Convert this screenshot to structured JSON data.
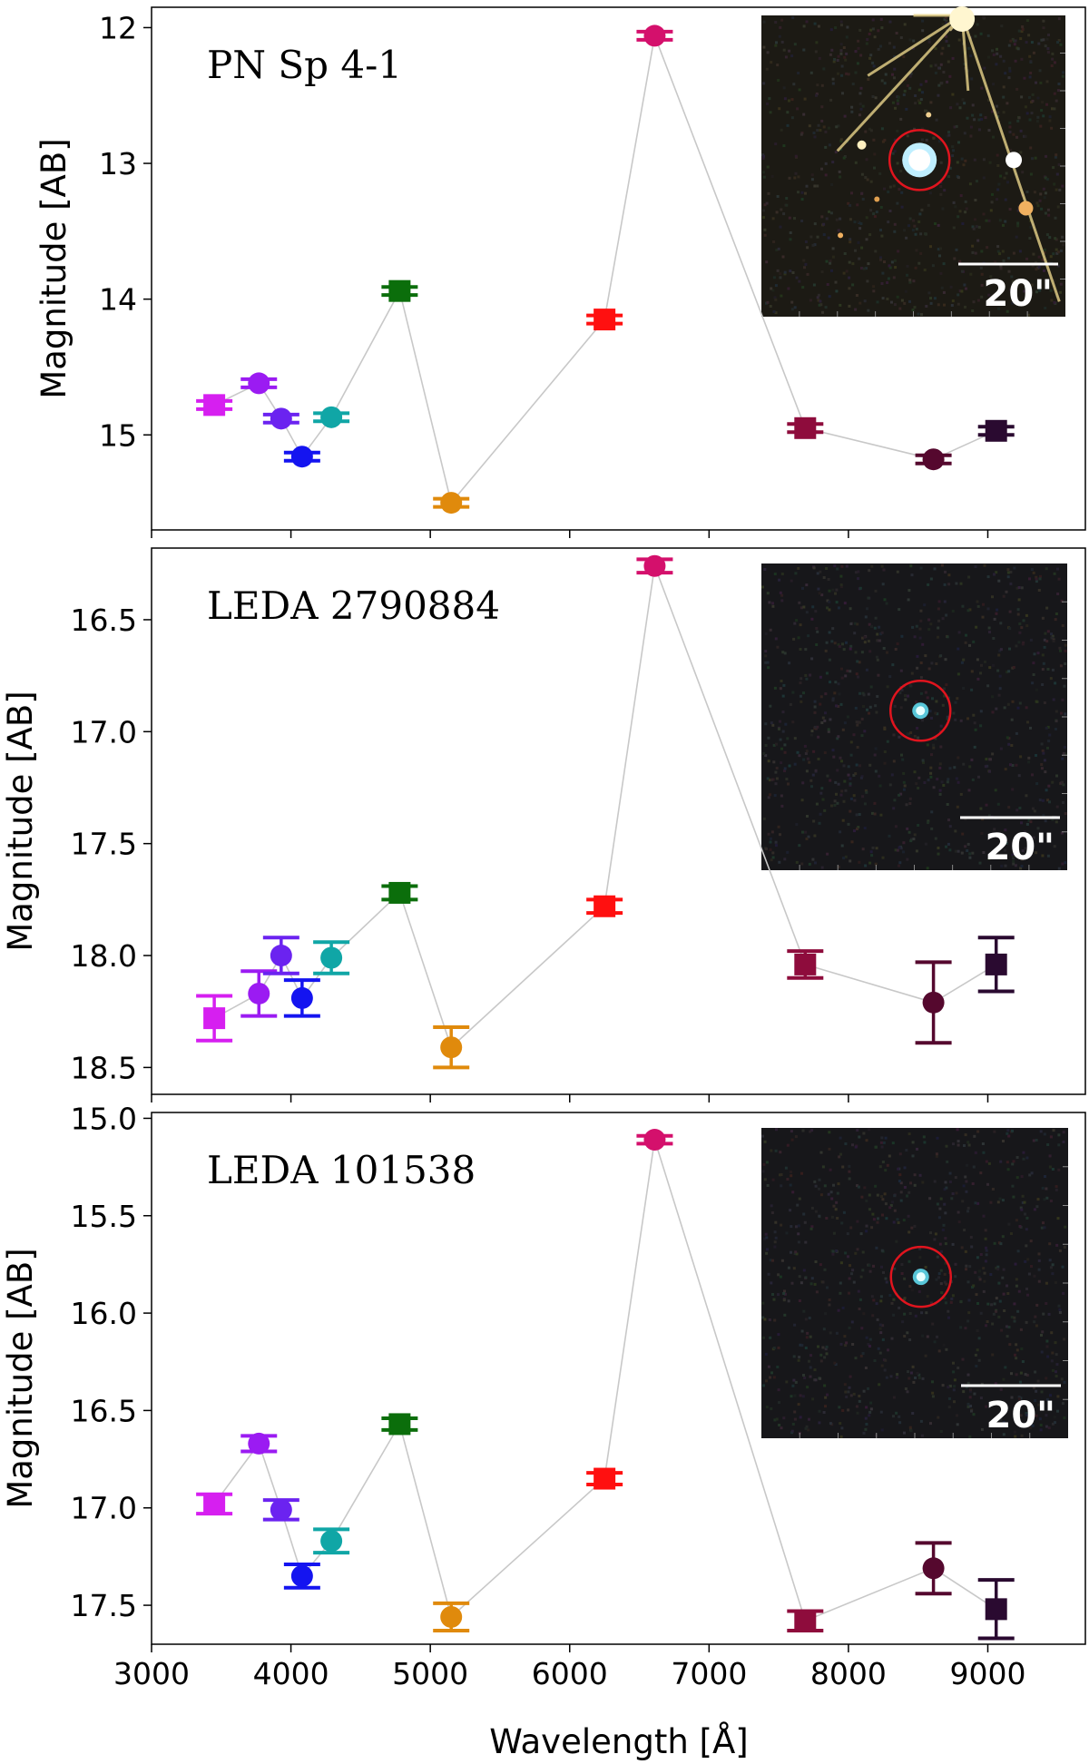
{
  "figure": {
    "xlabel": "Wavelength [Å]",
    "xticks": [
      3000,
      4000,
      5000,
      6000,
      7000,
      8000,
      9000
    ],
    "connector_color": "#c8c8c8"
  },
  "chart_data": [
    {
      "type": "scatter",
      "title": "PN Sp 4-1",
      "xlabel": "Wavelength [Å]",
      "ylabel": "Magnitude [AB]",
      "xlim": [
        3000,
        9700
      ],
      "ylim": [
        15.7,
        11.85
      ],
      "y_inverted": true,
      "yticks": [
        12,
        13,
        14,
        15
      ],
      "ytick_labels": [
        "12",
        "13",
        "14",
        "15"
      ],
      "inset": {
        "scale_label": "20\"",
        "variant": "bright"
      },
      "points": [
        {
          "x": 3450,
          "y": 14.78,
          "err": 0.03,
          "marker": "square",
          "color": "#d61ff0"
        },
        {
          "x": 3770,
          "y": 14.62,
          "err": 0.03,
          "marker": "circle",
          "color": "#9b1bf2"
        },
        {
          "x": 3930,
          "y": 14.88,
          "err": 0.03,
          "marker": "circle",
          "color": "#6b23f0"
        },
        {
          "x": 4080,
          "y": 15.16,
          "err": 0.03,
          "marker": "circle",
          "color": "#1414f0"
        },
        {
          "x": 4290,
          "y": 14.87,
          "err": 0.03,
          "marker": "circle",
          "color": "#10a6a6"
        },
        {
          "x": 4780,
          "y": 13.94,
          "err": 0.03,
          "marker": "square",
          "color": "#0b6e0b"
        },
        {
          "x": 5150,
          "y": 15.5,
          "err": 0.03,
          "marker": "circle",
          "color": "#e08a0c"
        },
        {
          "x": 6250,
          "y": 14.15,
          "err": 0.03,
          "marker": "square",
          "color": "#ff1010"
        },
        {
          "x": 6610,
          "y": 12.06,
          "err": 0.03,
          "marker": "circle",
          "color": "#d4106c"
        },
        {
          "x": 7690,
          "y": 14.95,
          "err": 0.03,
          "marker": "square",
          "color": "#8e0c3c"
        },
        {
          "x": 8610,
          "y": 15.18,
          "err": 0.03,
          "marker": "circle",
          "color": "#55082e"
        },
        {
          "x": 9060,
          "y": 14.97,
          "err": 0.03,
          "marker": "square",
          "color": "#2a0a30"
        }
      ]
    },
    {
      "type": "scatter",
      "title": "LEDA 2790884",
      "xlabel": "Wavelength [Å]",
      "ylabel": "Magnitude [AB]",
      "xlim": [
        3000,
        9700
      ],
      "ylim": [
        18.62,
        16.18
      ],
      "y_inverted": true,
      "yticks": [
        16.5,
        17.0,
        17.5,
        18.0,
        18.5
      ],
      "ytick_labels": [
        "16.5",
        "17.0",
        "17.5",
        "18.0",
        "18.5"
      ],
      "inset": {
        "scale_label": "20\"",
        "variant": "faint"
      },
      "points": [
        {
          "x": 3450,
          "y": 18.28,
          "err": 0.1,
          "marker": "square",
          "color": "#d61ff0"
        },
        {
          "x": 3770,
          "y": 18.17,
          "err": 0.1,
          "marker": "circle",
          "color": "#9b1bf2"
        },
        {
          "x": 3930,
          "y": 18.0,
          "err": 0.08,
          "marker": "circle",
          "color": "#6b23f0"
        },
        {
          "x": 4080,
          "y": 18.19,
          "err": 0.08,
          "marker": "circle",
          "color": "#1414f0"
        },
        {
          "x": 4290,
          "y": 18.01,
          "err": 0.07,
          "marker": "circle",
          "color": "#10a6a6"
        },
        {
          "x": 4780,
          "y": 17.72,
          "err": 0.03,
          "marker": "square",
          "color": "#0b6e0b"
        },
        {
          "x": 5150,
          "y": 18.41,
          "err": 0.09,
          "marker": "circle",
          "color": "#e08a0c"
        },
        {
          "x": 6250,
          "y": 17.78,
          "err": 0.03,
          "marker": "square",
          "color": "#ff1010"
        },
        {
          "x": 6610,
          "y": 16.26,
          "err": 0.03,
          "marker": "circle",
          "color": "#d4106c"
        },
        {
          "x": 7690,
          "y": 18.04,
          "err": 0.06,
          "marker": "square",
          "color": "#8e0c3c"
        },
        {
          "x": 8610,
          "y": 18.21,
          "err": 0.18,
          "marker": "circle",
          "color": "#55082e"
        },
        {
          "x": 9060,
          "y": 18.04,
          "err": 0.12,
          "marker": "square",
          "color": "#2a0a30"
        }
      ]
    },
    {
      "type": "scatter",
      "title": "LEDA 101538",
      "xlabel": "Wavelength [Å]",
      "ylabel": "Magnitude [AB]",
      "xlim": [
        3000,
        9700
      ],
      "ylim": [
        17.7,
        14.97
      ],
      "y_inverted": true,
      "yticks": [
        15.0,
        15.5,
        16.0,
        16.5,
        17.0,
        17.5
      ],
      "ytick_labels": [
        "15.0",
        "15.5",
        "16.0",
        "16.5",
        "17.0",
        "17.5"
      ],
      "inset": {
        "scale_label": "20\"",
        "variant": "faint"
      },
      "points": [
        {
          "x": 3450,
          "y": 16.98,
          "err": 0.05,
          "marker": "square",
          "color": "#d61ff0"
        },
        {
          "x": 3770,
          "y": 16.67,
          "err": 0.04,
          "marker": "circle",
          "color": "#9b1bf2"
        },
        {
          "x": 3930,
          "y": 17.01,
          "err": 0.05,
          "marker": "circle",
          "color": "#6b23f0"
        },
        {
          "x": 4080,
          "y": 17.35,
          "err": 0.06,
          "marker": "circle",
          "color": "#1414f0"
        },
        {
          "x": 4290,
          "y": 17.17,
          "err": 0.06,
          "marker": "circle",
          "color": "#10a6a6"
        },
        {
          "x": 4780,
          "y": 16.57,
          "err": 0.03,
          "marker": "square",
          "color": "#0b6e0b"
        },
        {
          "x": 5150,
          "y": 17.56,
          "err": 0.07,
          "marker": "circle",
          "color": "#e08a0c"
        },
        {
          "x": 6250,
          "y": 16.85,
          "err": 0.03,
          "marker": "square",
          "color": "#ff1010"
        },
        {
          "x": 6610,
          "y": 15.11,
          "err": 0.02,
          "marker": "circle",
          "color": "#d4106c"
        },
        {
          "x": 7690,
          "y": 17.58,
          "err": 0.05,
          "marker": "square",
          "color": "#8e0c3c"
        },
        {
          "x": 8610,
          "y": 17.31,
          "err": 0.13,
          "marker": "circle",
          "color": "#55082e"
        },
        {
          "x": 9060,
          "y": 17.52,
          "err": 0.15,
          "marker": "square",
          "color": "#2a0a30"
        }
      ]
    }
  ]
}
